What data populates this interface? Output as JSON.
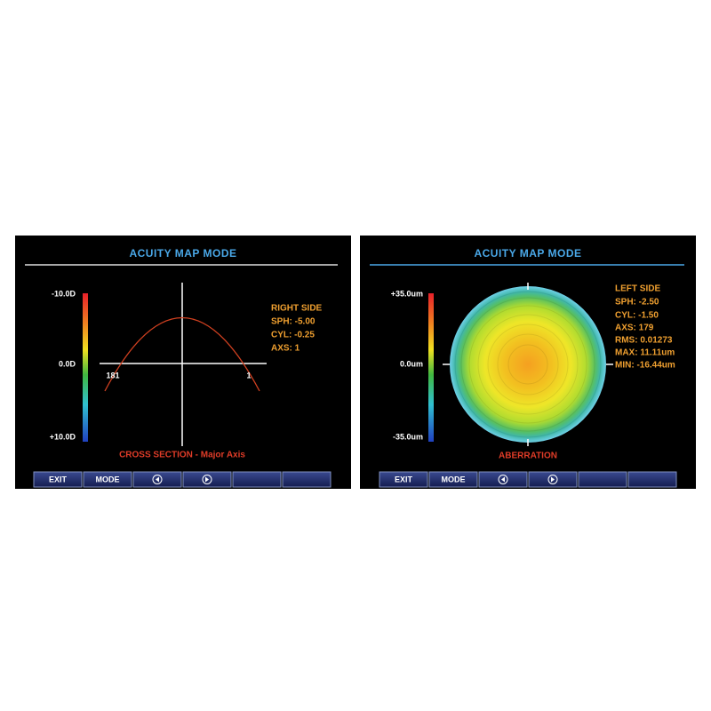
{
  "left_panel": {
    "title": "ACUITY MAP MODE",
    "scale_labels": [
      "-10.0D",
      "0.0D",
      "+10.0D"
    ],
    "axis_labels": [
      "181",
      "1"
    ],
    "info": [
      "RIGHT SIDE",
      "SPH: -5.00",
      "CYL: -0.25",
      "AXS: 1"
    ],
    "caption": "CROSS SECTION - Major Axis",
    "buttons": [
      "EXIT",
      "MODE"
    ]
  },
  "right_panel": {
    "title": "ACUITY MAP MODE",
    "scale_labels": [
      "+35.0um",
      "0.0um",
      "-35.0um"
    ],
    "info": [
      "LEFT SIDE",
      "SPH: -2.50",
      "CYL: -1.50",
      "AXS: 179",
      "RMS: 0.01273",
      "MAX: 11.11um",
      "MIN: -16.44um"
    ],
    "caption": "ABERRATION",
    "buttons": [
      "EXIT",
      "MODE"
    ]
  }
}
